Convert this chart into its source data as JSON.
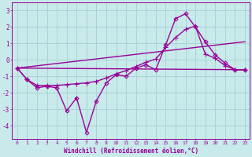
{
  "title": "",
  "xlabel": "Windchill (Refroidissement éolien,°C)",
  "background_color": "#c8eaea",
  "grid_color": "#aad4d4",
  "line_color": "#990099",
  "x_ticks": [
    0,
    1,
    2,
    3,
    4,
    5,
    6,
    7,
    8,
    9,
    10,
    11,
    12,
    13,
    14,
    15,
    16,
    17,
    18,
    19,
    20,
    21,
    22,
    23
  ],
  "y_ticks": [
    -4,
    -3,
    -2,
    -1,
    0,
    1,
    2,
    3
  ],
  "ylim": [
    -4.8,
    3.5
  ],
  "xlim": [
    -0.5,
    23.5
  ],
  "series": [
    {
      "x": [
        0,
        1,
        2,
        3,
        4,
        5,
        6,
        7,
        8,
        9,
        10,
        11,
        12,
        13,
        14,
        15,
        16,
        17,
        18,
        19,
        20,
        21,
        22,
        23
      ],
      "y": [
        -0.5,
        -1.2,
        -1.7,
        -1.6,
        -1.7,
        -3.1,
        -2.3,
        -4.4,
        -2.5,
        -1.4,
        -0.9,
        -1.0,
        -0.5,
        -0.3,
        -0.6,
        0.9,
        2.5,
        2.8,
        2.0,
        1.1,
        0.3,
        -0.2,
        -0.6,
        -0.6
      ],
      "marker": "D",
      "markersize": 2.5,
      "linewidth": 1.0
    },
    {
      "x": [
        0,
        23
      ],
      "y": [
        -0.5,
        -0.6
      ],
      "marker": null,
      "markersize": 0,
      "linewidth": 1.0
    },
    {
      "x": [
        0,
        1,
        2,
        3,
        4,
        5,
        6,
        7,
        8,
        9,
        10,
        11,
        12,
        13,
        14,
        15,
        16,
        17,
        18,
        19,
        20,
        21,
        22,
        23
      ],
      "y": [
        -0.5,
        -1.2,
        -1.55,
        -1.55,
        -1.55,
        -1.5,
        -1.45,
        -1.4,
        -1.3,
        -1.1,
        -0.85,
        -0.65,
        -0.4,
        -0.15,
        0.05,
        0.75,
        1.35,
        1.85,
        2.05,
        0.35,
        0.1,
        -0.35,
        -0.6,
        -0.6
      ],
      "marker": "+",
      "markersize": 4,
      "linewidth": 1.0
    },
    {
      "x": [
        0,
        23
      ],
      "y": [
        -0.5,
        1.1
      ],
      "marker": null,
      "markersize": 0,
      "linewidth": 1.0
    }
  ]
}
